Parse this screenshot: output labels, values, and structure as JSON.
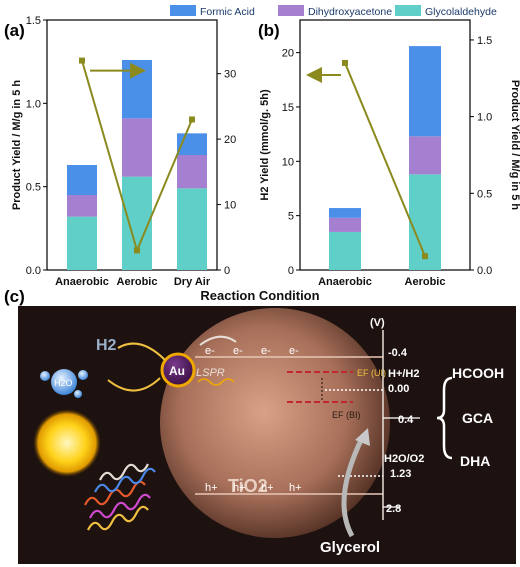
{
  "legend": [
    {
      "name": "Formic Acid",
      "color": "#4a90e8"
    },
    {
      "name": "Dihydroxyacetone",
      "color": "#a57fd0"
    },
    {
      "name": "Glycolaldehyde",
      "color": "#5fcfc7"
    }
  ],
  "chart_data": [
    {
      "panel": "(a)",
      "type": "bar",
      "categories": [
        "Anaerobic",
        "Aerobic",
        "Dry Air"
      ],
      "series": [
        {
          "name": "Glycolaldehyde",
          "values": [
            0.32,
            0.56,
            0.49
          ]
        },
        {
          "name": "Dihydroxyacetone",
          "values": [
            0.13,
            0.35,
            0.2
          ]
        },
        {
          "name": "Formic Acid",
          "values": [
            0.18,
            0.35,
            0.13
          ]
        }
      ],
      "ylim": [
        0,
        1.5
      ],
      "yticks": [
        "0.0",
        "0.5",
        "1.0",
        "1.5"
      ],
      "ylabel": "Product Yield / M/g in 5 h",
      "line": {
        "values": [
          32,
          3,
          23
        ],
        "ylim": [
          0,
          38.2
        ],
        "yticks": [
          "0",
          "10",
          "20",
          "30"
        ],
        "color": "#8a8a1f"
      },
      "arrow_direction": "right"
    },
    {
      "panel": "(b)",
      "type": "bar",
      "categories": [
        "Anaerobic",
        "Aerobic"
      ],
      "series": [
        {
          "name": "Glycolaldehyde",
          "values": [
            3.5,
            8.8
          ]
        },
        {
          "name": "Dihydroxyacetone",
          "values": [
            1.3,
            3.5
          ]
        },
        {
          "name": "Formic Acid",
          "values": [
            0.9,
            8.3
          ]
        }
      ],
      "ylim": [
        0,
        23
      ],
      "yticks": [
        "0",
        "5",
        "10",
        "15",
        "20"
      ],
      "ylabel": "H2 Yield (mmol/g. 5h)",
      "right_ylabel": "Product Yield / M/g in 5 h",
      "line": {
        "values": [
          1.35,
          0.09
        ],
        "ylim": [
          0,
          1.63
        ],
        "yticks": [
          "0.0",
          "0.5",
          "1.0",
          "1.5"
        ],
        "color": "#8a8a1f"
      },
      "arrow_direction": "left"
    }
  ],
  "xlabel": "Reaction Condition",
  "panel_c": {
    "label": "(c)",
    "unit": "(V)",
    "potentials": [
      "-0.4",
      "0.00",
      "0.4",
      "1.23",
      "2.8"
    ],
    "couples": [
      "H+/H2",
      "H2O/O2"
    ],
    "products": [
      "HCOOH",
      "GCA",
      "DHA"
    ],
    "au": "Au",
    "h2": "H2",
    "h2o": "H2O",
    "lspr": "LSPR",
    "tio2": "TiO2",
    "electron": "e-",
    "hole": "h+",
    "ef_ui": "EF (UI)",
    "ef_bi": "EF (BI)",
    "glycerol": "Glycerol"
  }
}
